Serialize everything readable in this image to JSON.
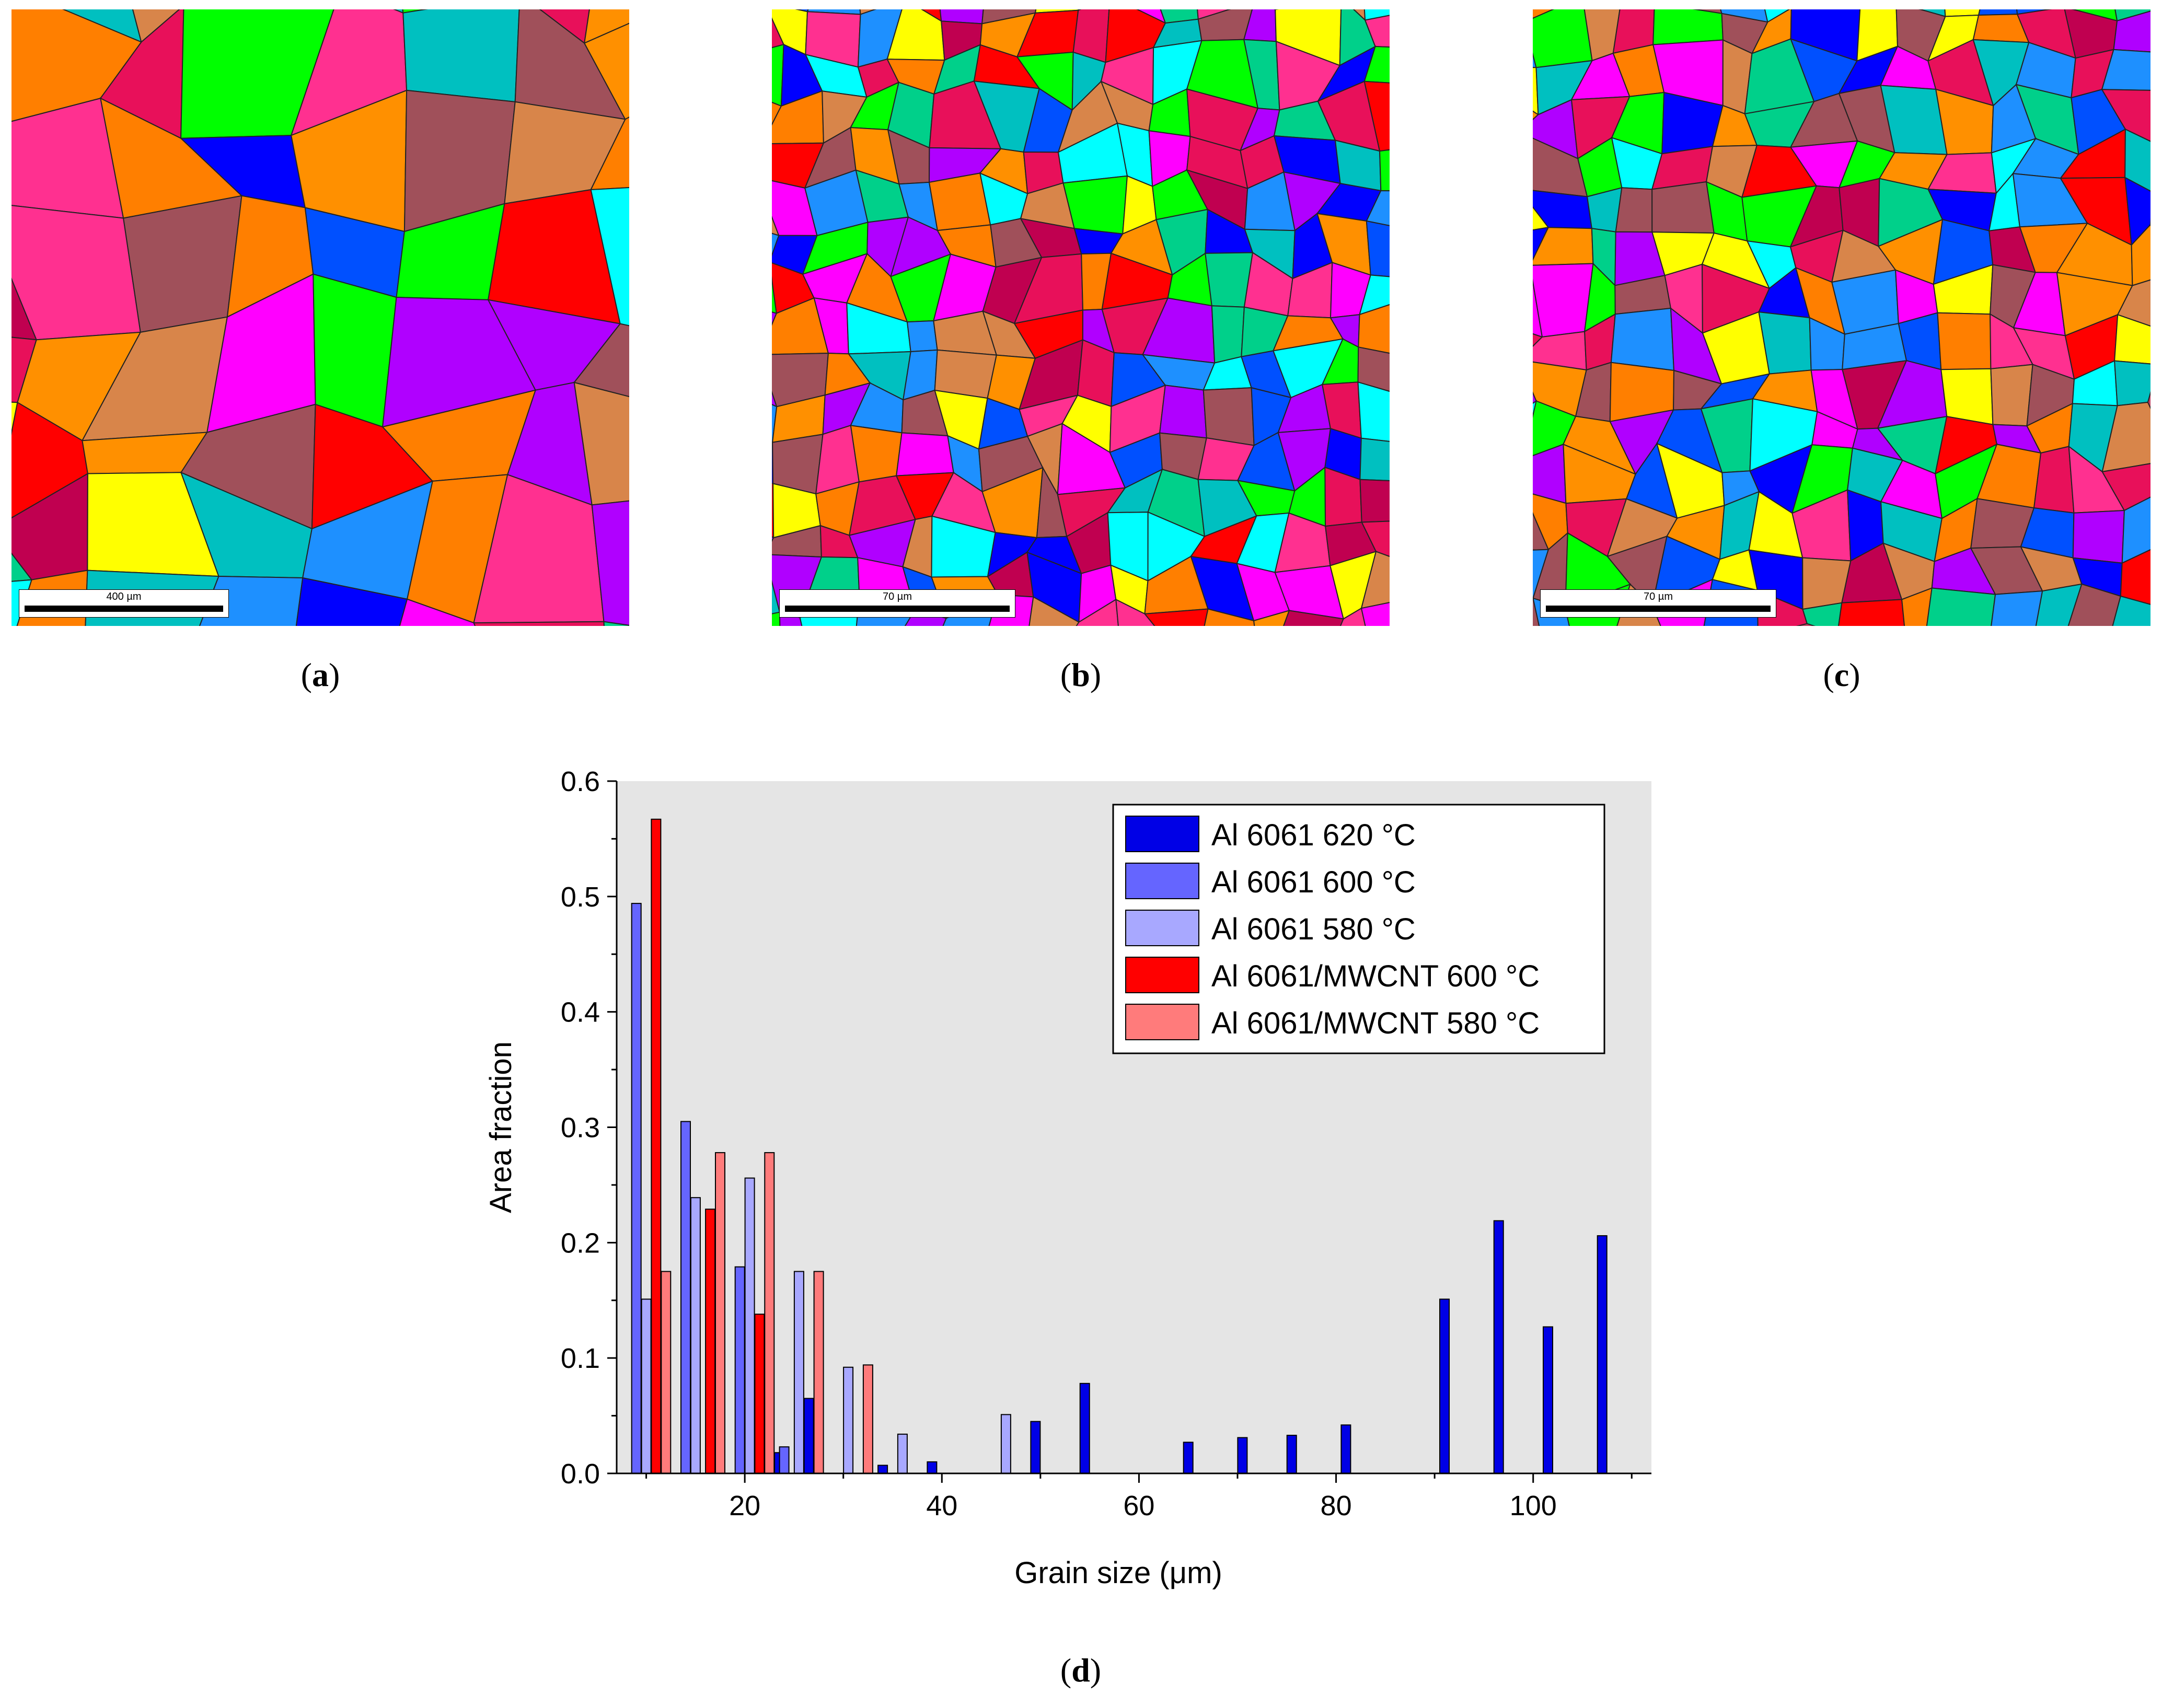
{
  "panels": [
    {
      "label_open": "(",
      "label_letter": "a",
      "label_close": ")",
      "scale_text": "400 µm"
    },
    {
      "label_open": "(",
      "label_letter": "b",
      "label_close": ")",
      "scale_text": "70 µm"
    },
    {
      "label_open": "(",
      "label_letter": "c",
      "label_close": ")",
      "scale_text": "70 µm"
    }
  ],
  "panel_d": {
    "label_open": "(",
    "label_letter": "d",
    "label_close": ")"
  },
  "grain_palette": [
    "#ff0000",
    "#0000ff",
    "#ff00ff",
    "#b000ff",
    "#00d08a",
    "#ffff00",
    "#00ffff",
    "#ff7f00",
    "#e8105a",
    "#a0505a",
    "#1e90ff",
    "#d8854a",
    "#00ff00",
    "#c00050",
    "#ff3090",
    "#0050ff",
    "#00c0c0",
    "#ff9000"
  ],
  "chart_data": {
    "type": "bar",
    "title": "",
    "xlabel": "Grain size (μm)",
    "ylabel": "Area fraction",
    "xlim": [
      7,
      112
    ],
    "ylim": [
      0,
      0.6
    ],
    "xticks": [
      20,
      40,
      60,
      80,
      100
    ],
    "yticks": [
      0.0,
      0.1,
      0.2,
      0.3,
      0.4,
      0.5,
      0.6
    ],
    "ytick_labels": [
      "0.0",
      "0.1",
      "0.2",
      "0.3",
      "0.4",
      "0.5",
      "0.6"
    ],
    "background": "#e5e5e5",
    "legend_position": "top-right",
    "series": [
      {
        "name": "Al 6061 620 °C",
        "color": "#0000e6",
        "x": [
          23.5,
          26.5,
          34,
          39,
          49.5,
          54.5,
          65,
          70.5,
          75.5,
          81,
          91,
          96.5,
          101.5,
          107
        ],
        "values": [
          0.018,
          0.065,
          0.007,
          0.01,
          0.045,
          0.078,
          0.027,
          0.031,
          0.033,
          0.042,
          0.151,
          0.219,
          0.127,
          0.206
        ]
      },
      {
        "name": "Al 6061 600 °C",
        "color": "#6565ff",
        "x": [
          9,
          14,
          19.5,
          24
        ],
        "values": [
          0.494,
          0.305,
          0.179,
          0.023
        ]
      },
      {
        "name": "Al 6061 580 °C",
        "color": "#a8a8ff",
        "x": [
          10,
          15,
          20.5,
          25.5,
          30.5,
          36,
          46.5
        ],
        "values": [
          0.151,
          0.239,
          0.256,
          0.175,
          0.092,
          0.034,
          0.051
        ]
      },
      {
        "name": "Al 6061/MWCNT 600 °C",
        "color": "#ff0000",
        "x": [
          11,
          16.5,
          21.5
        ],
        "values": [
          0.567,
          0.229,
          0.138
        ]
      },
      {
        "name": "Al 6061/MWCNT 580 °C",
        "color": "#ff7b7b",
        "x": [
          12,
          17.5,
          22.5,
          27.5,
          32.5
        ],
        "values": [
          0.175,
          0.278,
          0.278,
          0.175,
          0.094
        ]
      }
    ]
  }
}
